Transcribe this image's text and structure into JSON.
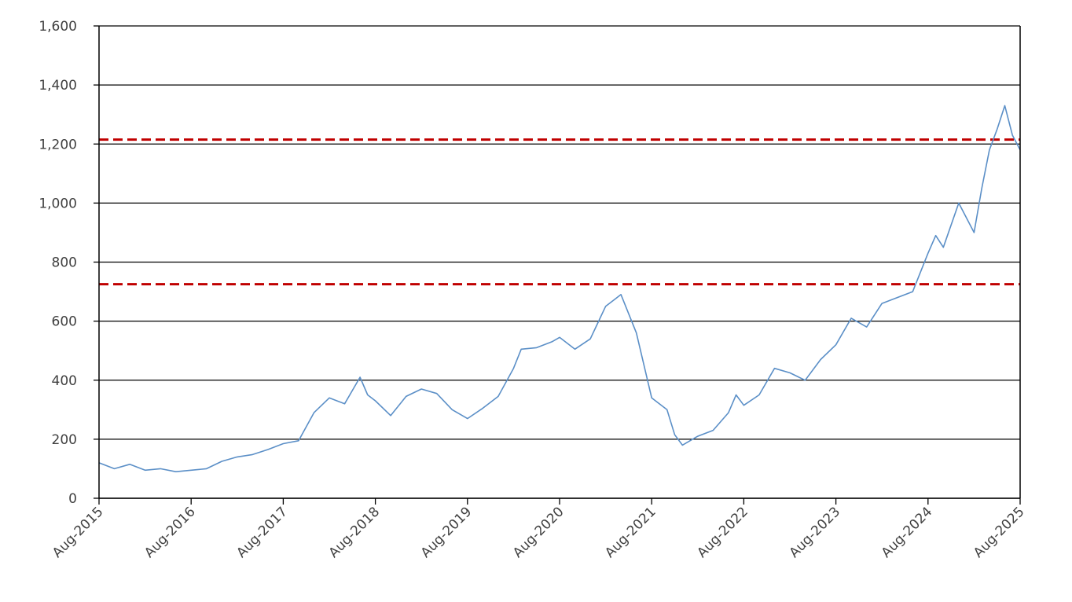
{
  "chart_data": {
    "type": "line",
    "title": "",
    "xlabel": "",
    "ylabel": "",
    "ylim": [
      0,
      1600
    ],
    "yticks": [
      0,
      200,
      400,
      600,
      800,
      1000,
      1200,
      1400,
      1600
    ],
    "ytick_labels": [
      "0",
      "200",
      "400",
      "600",
      "800",
      "1,000",
      "1,200",
      "1,400",
      "1,600"
    ],
    "xlim": [
      "2015-08",
      "2025-08"
    ],
    "xtick_labels": [
      "Aug-2015",
      "Aug-2016",
      "Aug-2017",
      "Aug-2018",
      "Aug-2019",
      "Aug-2020",
      "Aug-2021",
      "Aug-2022",
      "Aug-2023",
      "Aug-2024",
      "Aug-2025"
    ],
    "grid": true,
    "legend": "none",
    "series": [
      {
        "color": "#5b8fc7",
        "x": [
          "2015-08",
          "2015-10",
          "2015-12",
          "2016-02",
          "2016-04",
          "2016-06",
          "2016-08",
          "2016-10",
          "2016-12",
          "2017-02",
          "2017-04",
          "2017-06",
          "2017-08",
          "2017-10",
          "2017-12",
          "2018-02",
          "2018-04",
          "2018-06",
          "2018-07",
          "2018-08",
          "2018-10",
          "2018-12",
          "2019-02",
          "2019-04",
          "2019-06",
          "2019-08",
          "2019-10",
          "2019-12",
          "2020-02",
          "2020-03",
          "2020-05",
          "2020-07",
          "2020-08",
          "2020-10",
          "2020-12",
          "2021-02",
          "2021-04",
          "2021-06",
          "2021-08",
          "2021-10",
          "2021-11",
          "2021-12",
          "2022-02",
          "2022-04",
          "2022-06",
          "2022-07",
          "2022-08",
          "2022-10",
          "2022-12",
          "2023-02",
          "2023-04",
          "2023-06",
          "2023-08",
          "2023-10",
          "2023-12",
          "2024-02",
          "2024-04",
          "2024-06",
          "2024-08",
          "2024-09",
          "2024-10",
          "2024-12",
          "2025-02",
          "2025-03",
          "2025-04",
          "2025-05",
          "2025-06",
          "2025-07",
          "2025-08"
        ],
        "y": [
          120,
          100,
          115,
          95,
          100,
          90,
          95,
          100,
          125,
          140,
          148,
          165,
          185,
          195,
          290,
          340,
          320,
          410,
          350,
          330,
          280,
          345,
          370,
          355,
          300,
          270,
          305,
          345,
          440,
          505,
          510,
          530,
          545,
          505,
          540,
          650,
          690,
          560,
          340,
          300,
          215,
          180,
          210,
          230,
          290,
          350,
          315,
          350,
          440,
          425,
          400,
          470,
          520,
          610,
          580,
          660,
          680,
          700,
          830,
          890,
          850,
          1000,
          900,
          1050,
          1180,
          1250,
          1330,
          1230,
          1180
        ]
      }
    ],
    "reference_lines": [
      {
        "y": 1215,
        "color": "#c00000",
        "style": "dashed"
      },
      {
        "y": 725,
        "color": "#c00000",
        "style": "dashed"
      }
    ]
  }
}
